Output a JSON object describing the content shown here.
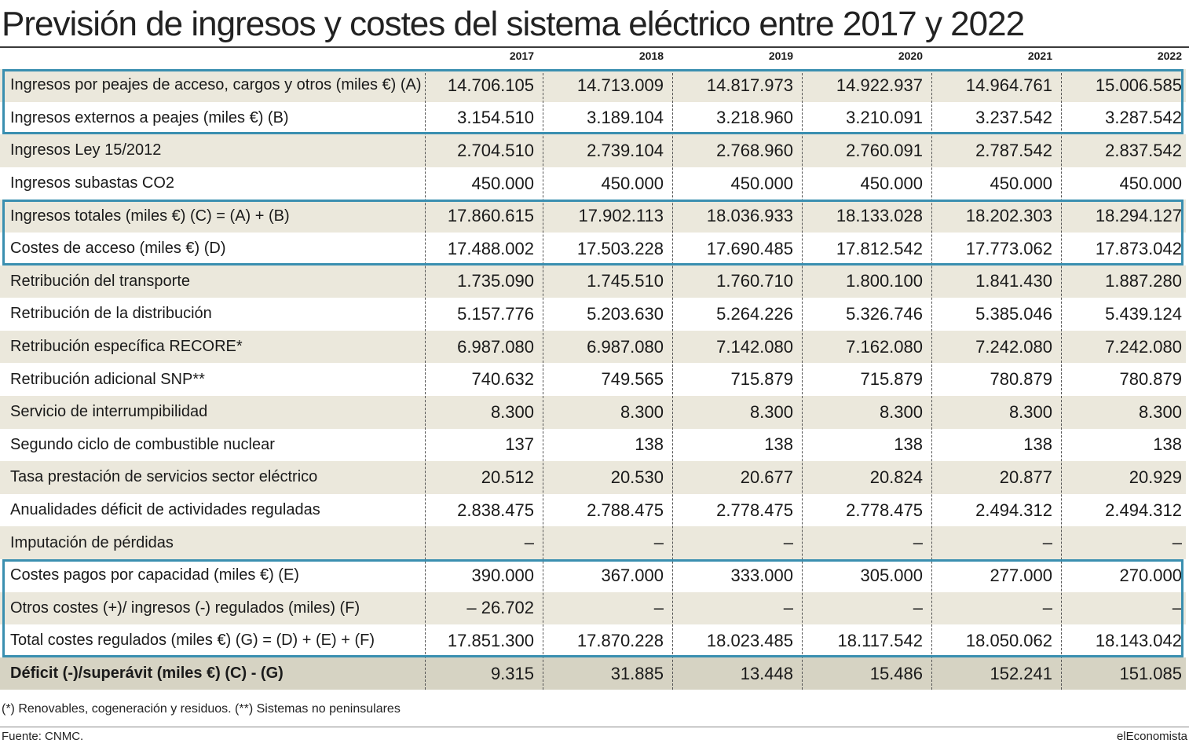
{
  "chart_data": {
    "type": "table",
    "title": "Previsión de ingresos y costes del sistema eléctrico entre 2017 y 2022",
    "columns": [
      "2017",
      "2018",
      "2019",
      "2020",
      "2021",
      "2022"
    ],
    "rows": [
      {
        "label": "Ingresos por peajes de acceso, cargos y otros  (miles €) (A)",
        "values": [
          "14.706.105",
          "14.713.009",
          "14.817.973",
          "14.922.937",
          "14.964.761",
          "15.006.585"
        ],
        "style": "shade"
      },
      {
        "label": "Ingresos externos a peajes (miles €) (B)",
        "values": [
          "3.154.510",
          "3.189.104",
          "3.218.960",
          "3.210.091",
          "3.237.542",
          "3.287.542"
        ],
        "style": "plain"
      },
      {
        "label": "Ingresos Ley 15/2012",
        "values": [
          "2.704.510",
          "2.739.104",
          "2.768.960",
          "2.760.091",
          "2.787.542",
          "2.837.542"
        ],
        "style": "shade"
      },
      {
        "label": "Ingresos subastas CO2",
        "values": [
          "450.000",
          "450.000",
          "450.000",
          "450.000",
          "450.000",
          "450.000"
        ],
        "style": "plain"
      },
      {
        "label": "Ingresos totales (miles €) (C) = (A) + (B)",
        "values": [
          "17.860.615",
          "17.902.113",
          "18.036.933",
          "18.133.028",
          "18.202.303",
          "18.294.127"
        ],
        "style": "shade"
      },
      {
        "label": "Costes de acceso (miles €) (D)",
        "values": [
          "17.488.002",
          "17.503.228",
          "17.690.485",
          "17.812.542",
          "17.773.062",
          "17.873.042"
        ],
        "style": "plain"
      },
      {
        "label": "Retribución del transporte",
        "values": [
          "1.735.090",
          "1.745.510",
          "1.760.710",
          "1.800.100",
          "1.841.430",
          "1.887.280"
        ],
        "style": "shade"
      },
      {
        "label": "Retribución de la distribución",
        "values": [
          "5.157.776",
          "5.203.630",
          "5.264.226",
          "5.326.746",
          "5.385.046",
          "5.439.124"
        ],
        "style": "plain"
      },
      {
        "label": "Retribución específica RECORE*",
        "values": [
          "6.987.080",
          "6.987.080",
          "7.142.080",
          "7.162.080",
          "7.242.080",
          "7.242.080"
        ],
        "style": "shade"
      },
      {
        "label": "Retribución adicional SNP**",
        "values": [
          "740.632",
          "749.565",
          "715.879",
          "715.879",
          "780.879",
          "780.879"
        ],
        "style": "plain"
      },
      {
        "label": "Servicio de interrumpibilidad",
        "values": [
          "8.300",
          "8.300",
          "8.300",
          "8.300",
          "8.300",
          "8.300"
        ],
        "style": "shade"
      },
      {
        "label": "Segundo ciclo de combustible nuclear",
        "values": [
          "137",
          "138",
          "138",
          "138",
          "138",
          "138"
        ],
        "style": "plain"
      },
      {
        "label": "Tasa prestación de servicios sector eléctrico",
        "values": [
          "20.512",
          "20.530",
          "20.677",
          "20.824",
          "20.877",
          "20.929"
        ],
        "style": "shade"
      },
      {
        "label": "Anualidades déficit de actividades reguladas",
        "values": [
          "2.838.475",
          "2.788.475",
          "2.778.475",
          "2.778.475",
          "2.494.312",
          "2.494.312"
        ],
        "style": "plain"
      },
      {
        "label": "Imputación de pérdidas",
        "values": [
          "–",
          "–",
          "–",
          "–",
          "–",
          "–"
        ],
        "style": "shade"
      },
      {
        "label": "Costes pagos por capacidad (miles €) (E)",
        "values": [
          "390.000",
          "367.000",
          "333.000",
          "305.000",
          "277.000",
          "270.000"
        ],
        "style": "plain"
      },
      {
        "label": "Otros costes (+)/ ingresos (-) regulados (miles) (F)",
        "values": [
          "– 26.702",
          "–",
          "–",
          "–",
          "–",
          "–"
        ],
        "style": "shade"
      },
      {
        "label": "Total costes regulados (miles €) (G) = (D) + (E) + (F)",
        "values": [
          "17.851.300",
          "17.870.228",
          "18.023.485",
          "18.117.542",
          "18.050.062",
          "18.143.042"
        ],
        "style": "plain"
      },
      {
        "label": "Déficit (-)/superávit (miles €) (C) - (G)",
        "values": [
          "9.315",
          "31.885",
          "13.448",
          "15.486",
          "152.241",
          "151.085"
        ],
        "style": "total"
      }
    ],
    "highlight_groups": [
      [
        0,
        1
      ],
      [
        4,
        5
      ],
      [
        15,
        17
      ]
    ],
    "highlight_color": "#3a8fb0",
    "shade_color": "#ebe8dc",
    "total_color": "#d6d3c3"
  },
  "footnote": "(*) Renovables, cogeneración y residuos. (**) Sistemas no peninsulares",
  "source": "Fuente: CNMC.",
  "brand": "elEconomista"
}
